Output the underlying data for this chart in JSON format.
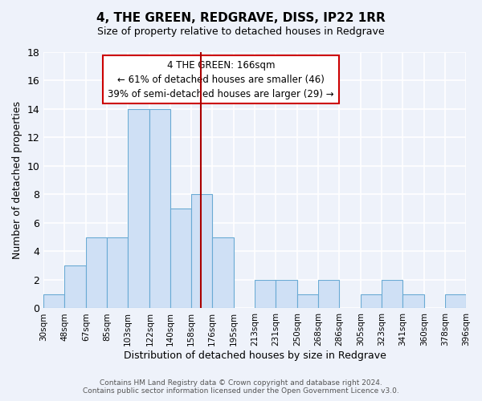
{
  "title": "4, THE GREEN, REDGRAVE, DISS, IP22 1RR",
  "subtitle": "Size of property relative to detached houses in Redgrave",
  "xlabel": "Distribution of detached houses by size in Redgrave",
  "ylabel": "Number of detached properties",
  "bin_edges": [
    30,
    48,
    67,
    85,
    103,
    122,
    140,
    158,
    176,
    195,
    213,
    231,
    250,
    268,
    286,
    305,
    323,
    341,
    360,
    378,
    396
  ],
  "bin_counts": [
    1,
    3,
    5,
    5,
    14,
    14,
    7,
    8,
    5,
    0,
    2,
    2,
    1,
    2,
    0,
    1,
    2,
    1,
    0,
    1
  ],
  "bar_color": "#cfe0f5",
  "bar_edge_color": "#6aaad4",
  "vline_x": 166,
  "vline_color": "#aa0000",
  "annotation_title": "4 THE GREEN: 166sqm",
  "annotation_line1": "← 61% of detached houses are smaller (46)",
  "annotation_line2": "39% of semi-detached houses are larger (29) →",
  "annotation_box_color": "#ffffff",
  "annotation_box_edge_color": "#cc0000",
  "ylim": [
    0,
    18
  ],
  "yticks": [
    0,
    2,
    4,
    6,
    8,
    10,
    12,
    14,
    16,
    18
  ],
  "footer_line1": "Contains HM Land Registry data © Crown copyright and database right 2024.",
  "footer_line2": "Contains public sector information licensed under the Open Government Licence v3.0.",
  "background_color": "#eef2fa",
  "grid_color": "#ffffff"
}
